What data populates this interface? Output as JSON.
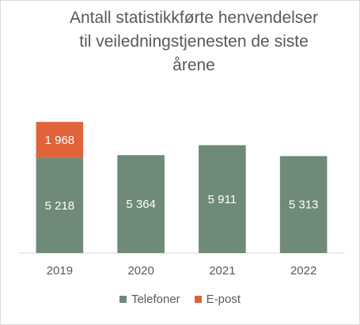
{
  "chart_data": {
    "type": "bar",
    "stacked": true,
    "title": "Antall statistikkførte henvendelser\ntil veiledningstjenesten de siste\nårene",
    "categories": [
      "2019",
      "2020",
      "2021",
      "2022"
    ],
    "series": [
      {
        "name": "Telefoner",
        "values": [
          5218,
          5364,
          5911,
          5313
        ],
        "labels": [
          "5 218",
          "5 364",
          "5 911",
          "5 313"
        ],
        "color": "#6f8a78"
      },
      {
        "name": "E-post",
        "values": [
          1968,
          null,
          null,
          null
        ],
        "labels": [
          "1 968",
          "",
          "",
          ""
        ],
        "color": "#e0633a"
      }
    ],
    "ylim": [
      0,
      7800
    ],
    "grid": false,
    "legend": "bottom"
  }
}
